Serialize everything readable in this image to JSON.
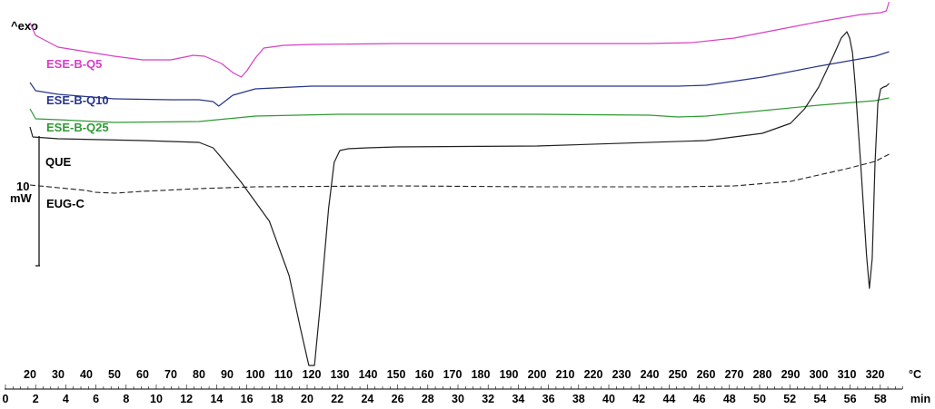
{
  "chart_data": {
    "type": "line",
    "title": "",
    "exo_label": "^exo",
    "scale_bar": {
      "value": "10",
      "unit": "mW"
    },
    "x_axis_temperature": {
      "unit": "°C",
      "range": [
        20,
        325
      ],
      "ticks": [
        "20",
        "30",
        "40",
        "50",
        "60",
        "70",
        "80",
        "90",
        "100",
        "110",
        "120",
        "130",
        "140",
        "150",
        "160",
        "170",
        "180",
        "190",
        "200",
        "210",
        "220",
        "230",
        "240",
        "250",
        "260",
        "270",
        "280",
        "290",
        "300",
        "310",
        "320"
      ]
    },
    "x_axis_time": {
      "unit": "min",
      "range": [
        0,
        61
      ],
      "ticks": [
        "0",
        "2",
        "4",
        "6",
        "8",
        "10",
        "12",
        "14",
        "16",
        "18",
        "20",
        "22",
        "24",
        "26",
        "28",
        "30",
        "32",
        "34",
        "36",
        "38",
        "40",
        "42",
        "44",
        "46",
        "48",
        "50",
        "52",
        "54",
        "56",
        "58"
      ]
    },
    "grid": false,
    "legend": "inline labels, left",
    "series": [
      {
        "name": "ESE-B-Q5",
        "color": "#d63fc6",
        "style": "solid",
        "x": [
          20,
          22,
          30,
          40,
          50,
          60,
          70,
          78,
          82,
          88,
          92,
          95,
          97,
          100,
          103,
          110,
          120,
          150,
          200,
          240,
          255,
          270,
          285,
          300,
          315,
          322,
          324,
          325
        ],
        "y": [
          -25,
          -39,
          -52,
          -57,
          -62,
          -66,
          -66,
          -61,
          -62,
          -70,
          -80,
          -85,
          -78,
          -64,
          -53,
          -50,
          -49,
          -48,
          -48,
          -48,
          -47,
          -42,
          -33,
          -24,
          -16,
          -14,
          -12,
          -2
        ]
      },
      {
        "name": "ESE-B-Q10",
        "color": "#27368a",
        "style": "solid",
        "x": [
          20,
          22,
          30,
          50,
          70,
          80,
          85,
          87,
          92,
          100,
          120,
          150,
          200,
          250,
          260,
          280,
          300,
          320,
          325
        ],
        "y": [
          -91,
          -100,
          -104,
          -109,
          -110,
          -110,
          -112,
          -117,
          -105,
          -98,
          -95,
          -95,
          -95,
          -95,
          -94,
          -85,
          -73,
          -62,
          -57
        ]
      },
      {
        "name": "ESE-B-Q25",
        "color": "#2f9a33",
        "style": "solid",
        "x": [
          20,
          22,
          30,
          50,
          80,
          100,
          130,
          200,
          240,
          250,
          260,
          280,
          300,
          320,
          325
        ],
        "y": [
          -120,
          -131,
          -132,
          -135,
          -134,
          -128,
          -126,
          -126,
          -127,
          -129,
          -128,
          -122,
          -116,
          -111,
          -108
        ]
      },
      {
        "name": "QUE",
        "color": "#1f1f1f",
        "style": "solid",
        "x": [
          20,
          21,
          30,
          60,
          80,
          85,
          88,
          95,
          105,
          112,
          116,
          119,
          121,
          123,
          126,
          128,
          130,
          133,
          140,
          150,
          200,
          260,
          280,
          290,
          295,
          300,
          305,
          308,
          310,
          311,
          312,
          313,
          315,
          317,
          318,
          319,
          320,
          321,
          322,
          323,
          324,
          325
        ],
        "y": [
          -140,
          -151,
          -153,
          -155,
          -157,
          -163,
          -174,
          -201,
          -244,
          -304,
          -362,
          -403,
          -403,
          -338,
          -230,
          -179,
          -166,
          -164,
          -163,
          -162,
          -161,
          -155,
          -147,
          -136,
          -120,
          -96,
          -63,
          -42,
          -35,
          -42,
          -58,
          -95,
          -185,
          -282,
          -318,
          -285,
          -180,
          -114,
          -98,
          -96,
          -95,
          -92
        ]
      },
      {
        "name": "EUG-C",
        "color": "#1f1f1f",
        "style": "dashed",
        "x": [
          20,
          30,
          40,
          43,
          50,
          60,
          80,
          100,
          150,
          200,
          250,
          270,
          290,
          300,
          310,
          320,
          325
        ],
        "y": [
          -204,
          -207,
          -210,
          -212,
          -213,
          -211,
          -208,
          -206,
          -205,
          -206,
          -206,
          -205,
          -200,
          -193,
          -186,
          -178,
          -170
        ]
      }
    ]
  }
}
